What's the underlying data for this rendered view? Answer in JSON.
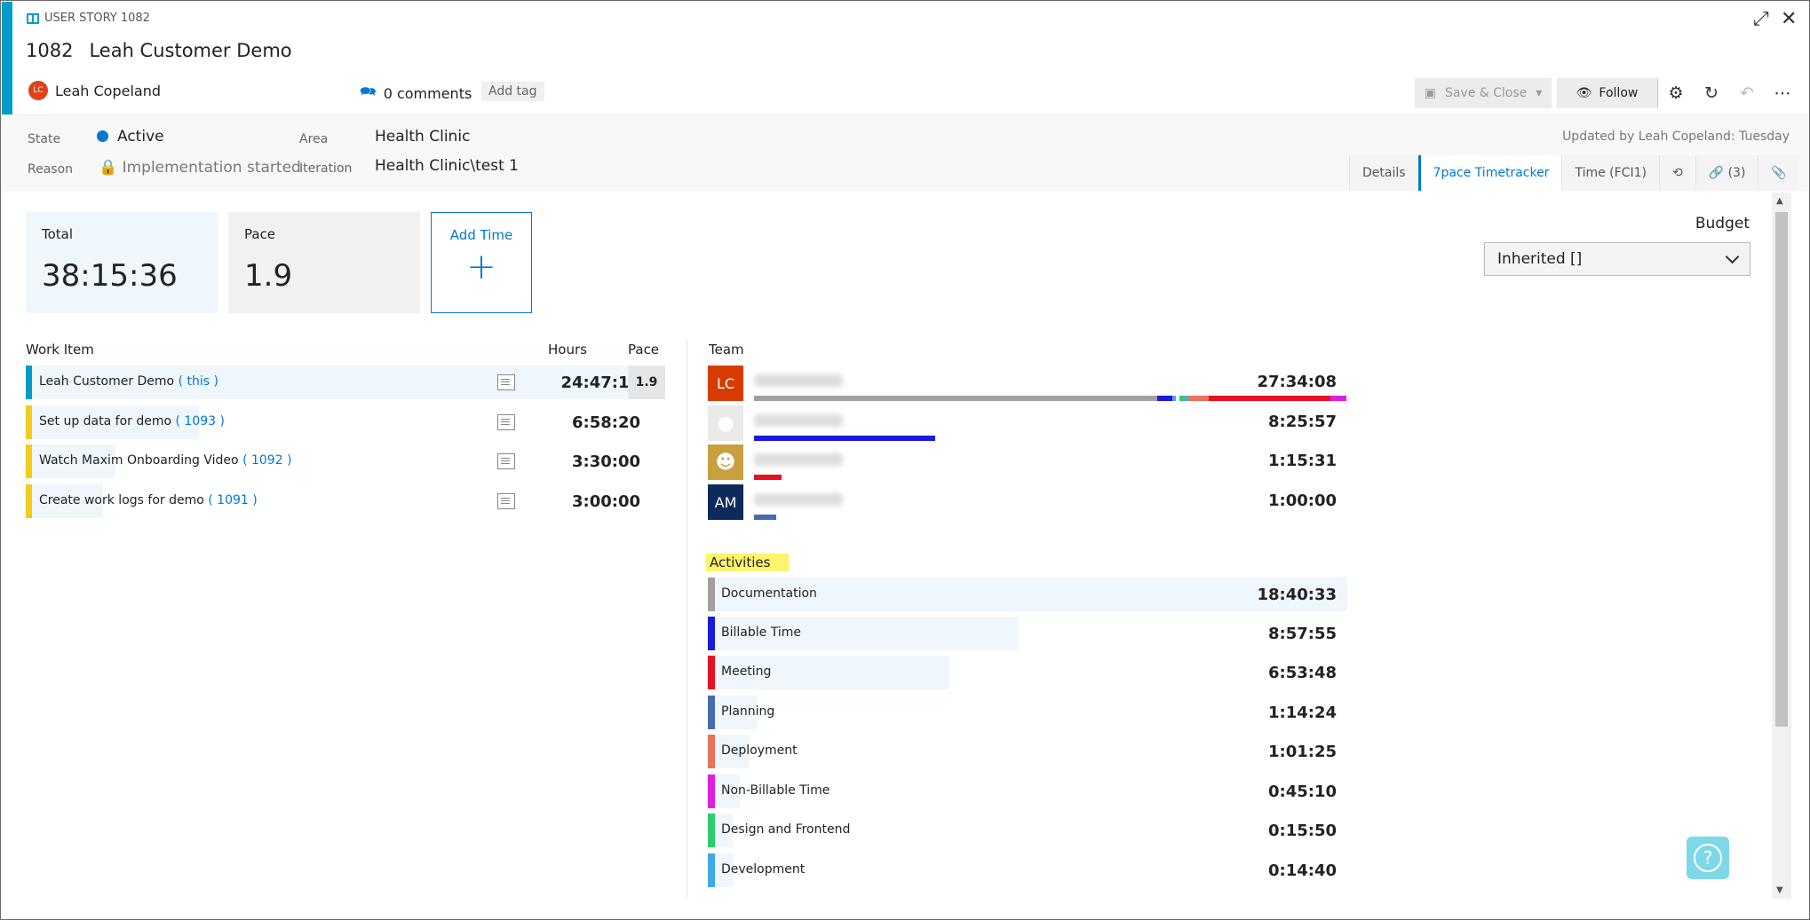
{
  "header": {
    "type_label": "USER STORY 1082",
    "id": "1082",
    "title": "Leah Customer Demo",
    "owner_initials": "LC",
    "owner": "Leah Copeland",
    "comments": "0 comments",
    "add_tag": "Add tag",
    "updated": "Updated by Leah Copeland: Tuesday"
  },
  "toolbar": {
    "save_close": "Save & Close",
    "follow": "Follow"
  },
  "fields": {
    "state_label": "State",
    "state_value": "Active",
    "reason_label": "Reason",
    "reason_value": "Implementation started",
    "area_label": "Area",
    "area_value": "Health Clinic",
    "iteration_label": "Iteration",
    "iteration_value": "Health Clinic\\test 1"
  },
  "tabs": [
    {
      "label": "Details"
    },
    {
      "label": "7pace Timetracker"
    },
    {
      "label": "Time (FCI1)"
    },
    {
      "label": ""
    },
    {
      "label": "(3)"
    },
    {
      "label": ""
    }
  ],
  "summary": {
    "total_label": "Total",
    "total_value": "38:15:36",
    "pace_label": "Pace",
    "pace_value": "1.9",
    "add_time_label": "Add Time",
    "budget_label": "Budget",
    "budget_value": "Inherited []"
  },
  "work_items": {
    "col_item": "Work Item",
    "col_hours": "Hours",
    "col_pace": "Pace",
    "rows": [
      {
        "name": "Leah Customer Demo",
        "id": "this",
        "hours": "24:47:16",
        "pace": "1.9",
        "color": "#009ccc",
        "fraction": 1.0
      },
      {
        "name": "Set up data for demo",
        "id": "1093",
        "hours": "6:58:20",
        "pace": "",
        "color": "#f2cb1d",
        "fraction": 0.28
      },
      {
        "name": "Watch Maxim Onboarding Video",
        "id": "1092",
        "hours": "3:30:00",
        "pace": "",
        "color": "#f2cb1d",
        "fraction": 0.14
      },
      {
        "name": "Create work logs for demo",
        "id": "1091",
        "hours": "3:00:00",
        "pace": "",
        "color": "#f2cb1d",
        "fraction": 0.12
      }
    ]
  },
  "team": {
    "title": "Team",
    "members": [
      {
        "initials": "LC",
        "avatar_color": "#d83b01",
        "time": "27:34:08",
        "bar": [
          {
            "color": "#a0a0a0",
            "fraction": 0.68
          },
          {
            "color": "#1a1adf",
            "fraction": 0.025
          },
          {
            "color": "#5aa0e6",
            "fraction": 0.006
          },
          {
            "color": "#ffffff",
            "fraction": 0.006
          },
          {
            "color": "#2ecc71",
            "fraction": 0.008
          },
          {
            "color": "#41b4c8",
            "fraction": 0.008
          },
          {
            "color": "#e8735a",
            "fraction": 0.035
          },
          {
            "color": "#e81123",
            "fraction": 0.205
          },
          {
            "color": "#e020e0",
            "fraction": 0.027
          }
        ]
      },
      {
        "initials": "",
        "avatar_color": "#eaeaea",
        "time": "8:25:57",
        "bar": [
          {
            "color": "#1a1adf",
            "fraction": 0.305
          }
        ]
      },
      {
        "initials": "",
        "avatar_color": "#c8a040",
        "time": "1:15:31",
        "bar": [
          {
            "color": "#e81123",
            "fraction": 0.047
          }
        ]
      },
      {
        "initials": "AM",
        "avatar_color": "#0c2a5a",
        "time": "1:00:00",
        "bar": [
          {
            "color": "#4a6ab0",
            "fraction": 0.038
          }
        ]
      }
    ]
  },
  "activities": {
    "title": "Activities",
    "rows": [
      {
        "name": "Documentation",
        "time": "18:40:33",
        "color": "#a0a0a0",
        "fraction": 1.0
      },
      {
        "name": "Billable Time",
        "time": "8:57:55",
        "color": "#1a1adf",
        "fraction": 0.48
      },
      {
        "name": "Meeting",
        "time": "6:53:48",
        "color": "#e81123",
        "fraction": 0.37
      },
      {
        "name": "Planning",
        "time": "1:14:24",
        "color": "#4a6ab0",
        "fraction": 0.066
      },
      {
        "name": "Deployment",
        "time": "1:01:25",
        "color": "#e8735a",
        "fraction": 0.055
      },
      {
        "name": "Non-Billable Time",
        "time": "0:45:10",
        "color": "#e020e0",
        "fraction": 0.04
      },
      {
        "name": "Design and Frontend",
        "time": "0:15:50",
        "color": "#2ecc71",
        "fraction": 0.014
      },
      {
        "name": "Development",
        "time": "0:14:40",
        "color": "#41a8e8",
        "fraction": 0.013
      }
    ]
  }
}
